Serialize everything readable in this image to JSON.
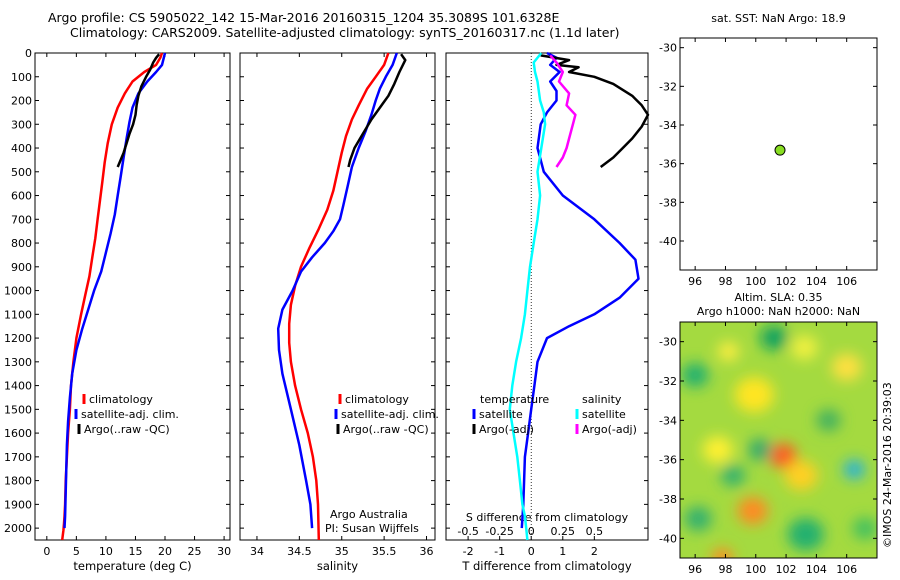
{
  "title_line1": "Argo profile: CS 5905022_142 15-Mar-2016 20160315_1204 35.3089S 101.6328E",
  "title_line2": "Climatology: CARS2009. Satellite-adjusted climatology: synTS_20160317.nc (1.1d later)",
  "credit": "©IMOS 24-Mar-2016 20:39:03",
  "colors": {
    "clim": "#ff0000",
    "sat": "#0000ff",
    "argo": "#000000",
    "s_sat": "#00ffff",
    "s_argo": "#ff00ff"
  },
  "chart_data": [
    {
      "id": "temp",
      "type": "line",
      "xlabel": "temperature (deg C)",
      "xlim": [
        -2,
        31
      ],
      "ylim": [
        0,
        2050
      ],
      "xticks": [
        0,
        5,
        10,
        15,
        20,
        25,
        30
      ],
      "yticks": [
        0,
        100,
        200,
        300,
        400,
        500,
        600,
        700,
        800,
        900,
        1000,
        1100,
        1200,
        1300,
        1400,
        1500,
        1600,
        1700,
        1800,
        1900,
        2000
      ],
      "legend": [
        "climatology",
        "satellite-adj. clim.",
        "Argo(..raw -QC)"
      ],
      "series": [
        {
          "key": "clim",
          "x": [
            19.5,
            19.2,
            18.5,
            16.5,
            14.5,
            13.2,
            12,
            11,
            10.3,
            9.8,
            9.4,
            9,
            8.6,
            8.2,
            7.7,
            7.2,
            6.5,
            5.8,
            5,
            4.5,
            4.1,
            3.9,
            3.6,
            3.4,
            3.2,
            3.1,
            3,
            2.9,
            2.8,
            2.7,
            2.6
          ],
          "y": [
            0,
            20,
            50,
            80,
            120,
            170,
            230,
            300,
            380,
            460,
            540,
            620,
            700,
            780,
            860,
            940,
            1020,
            1100,
            1200,
            1300,
            1400,
            1500,
            1600,
            1700,
            1800,
            1900,
            1950,
            1980,
            2010,
            2030,
            2050
          ]
        },
        {
          "key": "sat",
          "x": [
            20,
            19.8,
            19.5,
            18.5,
            17,
            15.5,
            14.5,
            14,
            13.5,
            13,
            12.5,
            12,
            11.5,
            10.8,
            10,
            9.2,
            8,
            7,
            6,
            5,
            4.3,
            3.9,
            3.6,
            3.4,
            3.3,
            3.2,
            3.1,
            3
          ],
          "y": [
            0,
            20,
            50,
            80,
            120,
            170,
            230,
            290,
            360,
            440,
            520,
            600,
            680,
            760,
            840,
            920,
            1000,
            1080,
            1160,
            1250,
            1350,
            1450,
            1550,
            1650,
            1750,
            1850,
            1950,
            2000
          ]
        },
        {
          "key": "argo",
          "x": [
            19,
            18.5,
            18,
            17.5,
            16.8,
            16,
            15.5,
            15.2,
            15,
            14.6,
            14,
            13.5,
            13,
            12.5,
            12
          ],
          "y": [
            5,
            20,
            40,
            70,
            100,
            140,
            180,
            220,
            260,
            300,
            340,
            380,
            420,
            450,
            480
          ]
        }
      ]
    },
    {
      "id": "sal",
      "type": "line",
      "xlabel": "salinity",
      "xlim": [
        33.8,
        36.1
      ],
      "ylim": [
        0,
        2050
      ],
      "xticks": [
        34,
        34.5,
        35,
        35.5,
        36
      ],
      "xticklabels": [
        "34",
        "34.5",
        "35",
        "35.5",
        "36"
      ],
      "legend": [
        "climatology",
        "satellite-adj. clim.",
        "Argo(..raw -QC)"
      ],
      "annotation": [
        "Argo Australia",
        "PI: Susan Wijffels"
      ],
      "series": [
        {
          "key": "clim",
          "x": [
            35.55,
            35.5,
            35.4,
            35.3,
            35.2,
            35.12,
            35.05,
            35,
            34.95,
            34.9,
            34.83,
            34.73,
            34.62,
            34.52,
            34.45,
            34.4,
            34.38,
            34.38,
            34.4,
            34.45,
            34.52,
            34.6,
            34.66,
            34.7,
            34.72,
            34.73
          ],
          "y": [
            0,
            50,
            100,
            150,
            220,
            280,
            350,
            420,
            500,
            580,
            660,
            740,
            820,
            900,
            980,
            1060,
            1140,
            1220,
            1300,
            1400,
            1500,
            1600,
            1700,
            1800,
            1900,
            2050
          ]
        },
        {
          "key": "sat",
          "x": [
            35.65,
            35.6,
            35.52,
            35.45,
            35.4,
            35.35,
            35.28,
            35.2,
            35.12,
            35.07,
            35.02,
            34.98,
            34.9,
            34.8,
            34.65,
            34.52,
            34.42,
            34.3,
            34.25,
            34.26,
            34.3,
            34.4,
            34.5,
            34.58,
            34.63,
            34.65
          ],
          "y": [
            0,
            50,
            100,
            150,
            200,
            260,
            330,
            400,
            480,
            560,
            640,
            700,
            750,
            800,
            860,
            920,
            1000,
            1080,
            1160,
            1250,
            1350,
            1500,
            1650,
            1800,
            1900,
            2000
          ]
        },
        {
          "key": "argo",
          "x": [
            35.7,
            35.75,
            35.68,
            35.62,
            35.55,
            35.45,
            35.35,
            35.25,
            35.15,
            35.1,
            35.08
          ],
          "y": [
            5,
            30,
            80,
            130,
            180,
            230,
            280,
            340,
            400,
            450,
            480
          ]
        }
      ]
    },
    {
      "id": "diff",
      "type": "line",
      "xlabel": "T difference from climatology",
      "xlabel_top": "S difference from climatology",
      "xlim": [
        -2.7,
        3.7
      ],
      "ylim": [
        0,
        2050
      ],
      "xticks": [
        -2,
        -1,
        0,
        1,
        2
      ],
      "xticks_s": [
        -0.5,
        -0.25,
        0,
        0.25,
        0.5
      ],
      "xticks_s_labels": [
        "-0.5",
        "-0.25",
        "0",
        "0.25",
        "0.5"
      ],
      "legend_left_title": "temperature",
      "legend_right_title": "salinity",
      "legend_left": [
        "satellite",
        "Argo(-adj)"
      ],
      "legend_right": [
        "satellite",
        "Argo(-adj)"
      ],
      "series": [
        {
          "key": "sat",
          "x": [
            0.5,
            0.8,
            0.6,
            0.9,
            0.6,
            0.8,
            0.8,
            0.5,
            0.3,
            0.2,
            0.4,
            1,
            2,
            2.8,
            3.3,
            3.4,
            2.8,
            2,
            1.2,
            0.5,
            0.2,
            0.1,
            0,
            -0.1,
            -0.2,
            -0.25,
            -0.3
          ],
          "y": [
            0,
            20,
            50,
            80,
            120,
            160,
            200,
            250,
            300,
            400,
            500,
            600,
            700,
            800,
            870,
            950,
            1030,
            1100,
            1150,
            1200,
            1300,
            1400,
            1500,
            1600,
            1700,
            1900,
            2000
          ]
        },
        {
          "key": "argo",
          "x": [
            0.3,
            1.2,
            0.8,
            1.5,
            1.2,
            2,
            2.6,
            3.2,
            3.5,
            3.7,
            3.5,
            3.2,
            2.9,
            2.6,
            2.2
          ],
          "y": [
            10,
            30,
            50,
            60,
            80,
            100,
            130,
            180,
            220,
            260,
            310,
            360,
            400,
            440,
            480
          ]
        },
        {
          "key": "s_sat",
          "x": [
            0.08,
            0.02,
            0.03,
            0.05,
            0.06,
            0.07,
            0.1,
            0.11,
            0.08,
            0.05,
            0.07,
            0.05,
            0.02,
            -0.01,
            -0.03,
            -0.05,
            -0.08,
            -0.12,
            -0.15,
            -0.17,
            -0.14,
            -0.11,
            -0.09,
            -0.07,
            -0.05,
            -0.04,
            -0.03
          ],
          "y": [
            0,
            40,
            80,
            120,
            160,
            200,
            250,
            300,
            400,
            500,
            600,
            700,
            800,
            900,
            1000,
            1100,
            1200,
            1300,
            1400,
            1500,
            1600,
            1700,
            1800,
            1900,
            1950,
            2000,
            2050
          ]
        },
        {
          "key": "s_argo",
          "x": [
            0.15,
            0.2,
            0.25,
            0.22,
            0.3,
            0.28,
            0.35,
            0.33,
            0.3,
            0.28,
            0.25,
            0.2
          ],
          "y": [
            10,
            40,
            80,
            120,
            170,
            220,
            260,
            300,
            360,
            400,
            440,
            480
          ]
        }
      ]
    },
    {
      "id": "map1",
      "type": "scatter",
      "title": "sat. SST: NaN Argo: 18.9",
      "xlim": [
        95,
        108
      ],
      "ylim": [
        -41.5,
        -29.5
      ],
      "xticks": [
        96,
        98,
        100,
        102,
        104,
        106
      ],
      "yticks": [
        -30,
        -32,
        -34,
        -36,
        -38,
        -40
      ],
      "points": [
        {
          "x": 101.6,
          "y": -35.3
        }
      ],
      "marker_color": "#88dd22"
    },
    {
      "id": "map2",
      "type": "heatmap",
      "title_line1": "Altim. SLA: 0.35",
      "title_line2": "Argo h1000: NaN h2000: NaN",
      "xlim": [
        95,
        108
      ],
      "ylim": [
        -41,
        -29
      ],
      "xticks": [
        96,
        98,
        100,
        102,
        104,
        106
      ],
      "yticks": [
        -30,
        -32,
        -34,
        -36,
        -38,
        -40
      ],
      "background": "#a4da40",
      "blobs": [
        {
          "x": 101.8,
          "y": -35.8,
          "r": 0.9,
          "c": "#ff5a20"
        },
        {
          "x": 99.8,
          "y": -38.6,
          "r": 1.0,
          "c": "#ff8a20"
        },
        {
          "x": 97.8,
          "y": -41.0,
          "r": 0.7,
          "c": "#ff8a20"
        },
        {
          "x": 99.9,
          "y": -32.7,
          "r": 1.3,
          "c": "#ffe520"
        },
        {
          "x": 103.0,
          "y": -36.8,
          "r": 1.1,
          "c": "#ffd020"
        },
        {
          "x": 97.5,
          "y": -35.5,
          "r": 1.0,
          "c": "#fff030"
        },
        {
          "x": 106.0,
          "y": -31.3,
          "r": 1.0,
          "c": "#ffe040"
        },
        {
          "x": 103.2,
          "y": -30.3,
          "r": 0.9,
          "c": "#f0f040"
        },
        {
          "x": 106.5,
          "y": -36.5,
          "r": 0.7,
          "c": "#20b0e0"
        },
        {
          "x": 101.2,
          "y": -29.8,
          "r": 0.9,
          "c": "#10a060"
        },
        {
          "x": 96.0,
          "y": -31.7,
          "r": 0.9,
          "c": "#20b070"
        },
        {
          "x": 103.3,
          "y": -39.8,
          "r": 1.2,
          "c": "#20b070"
        },
        {
          "x": 98.5,
          "y": -36.8,
          "r": 0.8,
          "c": "#30b070"
        },
        {
          "x": 104.8,
          "y": -34.0,
          "r": 0.8,
          "c": "#40b060"
        },
        {
          "x": 100.3,
          "y": -35.5,
          "r": 0.8,
          "c": "#30a870"
        },
        {
          "x": 96.2,
          "y": -39.0,
          "r": 0.9,
          "c": "#30b070"
        },
        {
          "x": 107.2,
          "y": -39.5,
          "r": 0.8,
          "c": "#40c060"
        },
        {
          "x": 98.2,
          "y": -30.5,
          "r": 0.7,
          "c": "#ffee40"
        }
      ]
    }
  ]
}
